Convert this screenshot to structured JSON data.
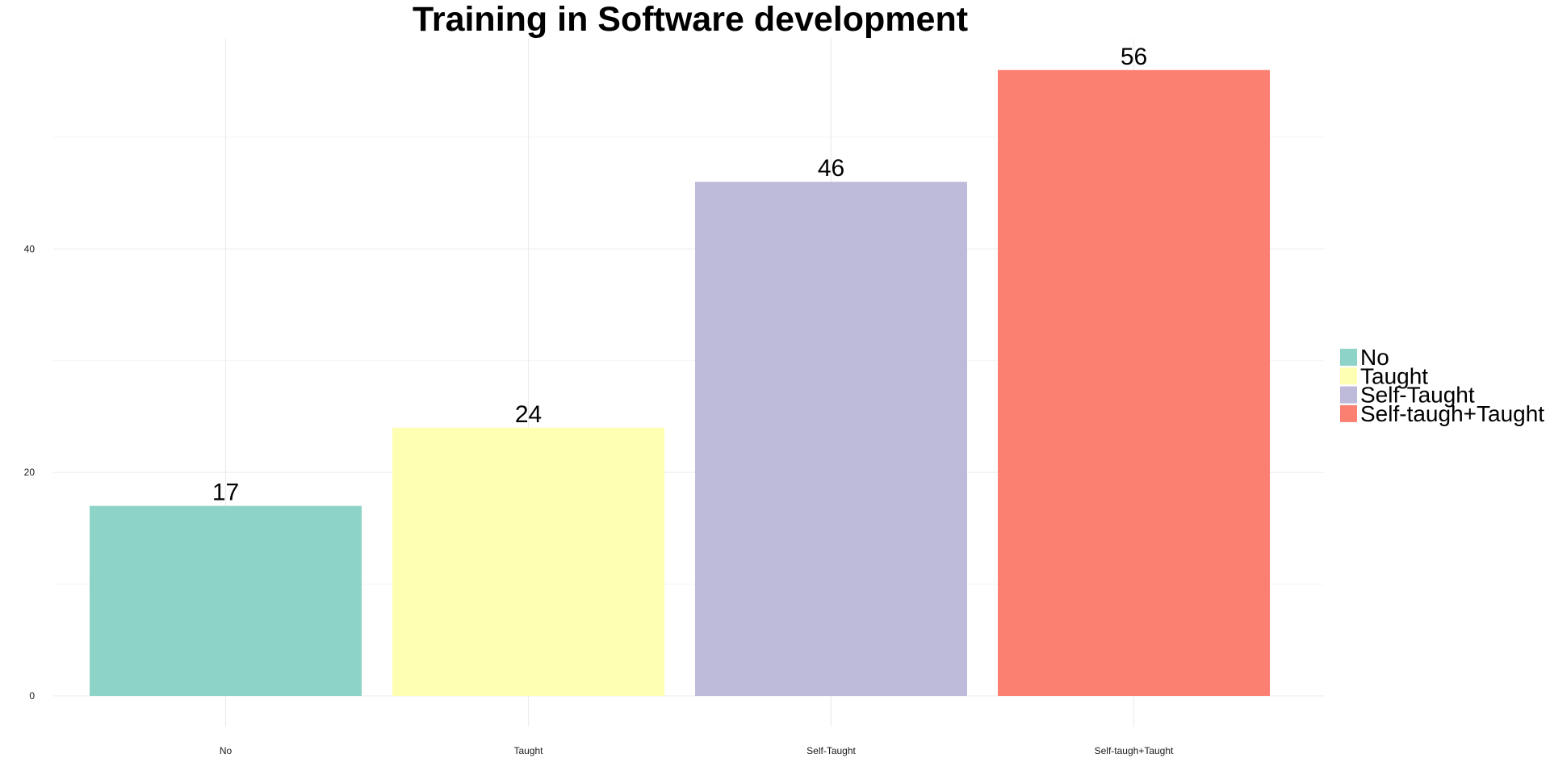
{
  "chart_data": {
    "type": "bar",
    "title": "Training in Software development",
    "xlabel": "",
    "ylabel": "",
    "categories": [
      "No",
      "Taught",
      "Self-Taught",
      "Self-taugh+Taught"
    ],
    "values": [
      17,
      24,
      46,
      56
    ],
    "value_labels": [
      "17",
      "24",
      "46",
      "56"
    ],
    "colors": [
      "#8dd3c7",
      "#ffffb3",
      "#bebada",
      "#fb8072"
    ],
    "ylim": [
      0,
      58.8
    ],
    "y_ticks": [
      0,
      20,
      40
    ],
    "y_tick_labels": [
      "0",
      "20",
      "40"
    ],
    "y_minor_ticks": [
      10,
      30,
      50
    ],
    "grid": true,
    "legend": {
      "position": "right",
      "entries": [
        "No",
        "Taught",
        "Self-Taught",
        "Self-taugh+Taught"
      ]
    }
  }
}
